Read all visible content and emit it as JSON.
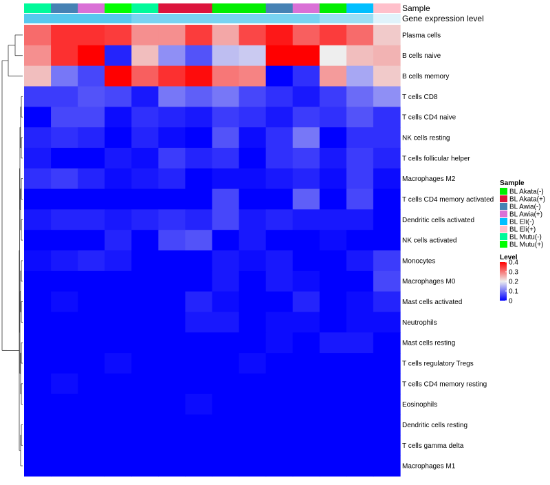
{
  "chart_data": {
    "type": "heatmap",
    "annotation_labels": [
      "Sample",
      "Gene expression level"
    ],
    "row_labels": [
      "Plasma cells",
      "B cells naive",
      "B cells memory",
      "T cells CD8",
      "T cells CD4 naive",
      "NK cells resting",
      "T cells follicular helper",
      "Macrophages M2",
      "T cells CD4 memory activated",
      "Dendritic cells activated",
      "NK cells activated",
      "Monocytes",
      "Macrophages M0",
      "Mast cells activated",
      "Neutrophils",
      "Mast cells resting",
      "T cells regulatory  Tregs",
      "T cells CD4 memory resting",
      "Eosinophils",
      "Dendritic cells resting",
      "T cells gamma delta",
      "Macrophages M1"
    ],
    "column_samples": [
      "BL Mutu(-)",
      "BL Awia(-)",
      "BL Awia(+)",
      "BL Mutu(+)",
      "BL Mutu(-)",
      "BL Akata(+)",
      "BL Akata(+)",
      "BL Akata(-)",
      "BL Akata(-)",
      "BL Awia(-)",
      "BL Awia(+)",
      "BL Akata(-)",
      "BL Eli(-)",
      "BL Eli(+)"
    ],
    "expression_band": [
      0.16,
      0.16,
      0.16,
      0.16,
      0.14,
      0.14,
      0.14,
      0.14,
      0.14,
      0.14,
      0.14,
      0.12,
      0.12,
      0.08
    ],
    "values": [
      [
        0.31,
        0.36,
        0.36,
        0.35,
        0.28,
        0.28,
        0.35,
        0.26,
        0.34,
        0.38,
        0.32,
        0.35,
        0.31,
        0.23
      ],
      [
        0.28,
        0.36,
        0.4,
        0.03,
        0.24,
        0.12,
        0.07,
        0.16,
        0.17,
        0.4,
        0.4,
        0.2,
        0.24,
        0.25
      ],
      [
        0.24,
        0.1,
        0.06,
        0.4,
        0.32,
        0.36,
        0.39,
        0.3,
        0.29,
        0.0,
        0.04,
        0.27,
        0.14,
        0.23
      ],
      [
        0.05,
        0.05,
        0.07,
        0.06,
        0.02,
        0.1,
        0.08,
        0.1,
        0.06,
        0.04,
        0.02,
        0.05,
        0.09,
        0.12
      ],
      [
        0.0,
        0.06,
        0.06,
        0.01,
        0.04,
        0.03,
        0.02,
        0.05,
        0.04,
        0.02,
        0.05,
        0.04,
        0.07,
        0.04
      ],
      [
        0.03,
        0.04,
        0.03,
        0.0,
        0.03,
        0.01,
        0.0,
        0.07,
        0.01,
        0.04,
        0.1,
        0.0,
        0.04,
        0.04
      ],
      [
        0.02,
        0.0,
        0.0,
        0.02,
        0.01,
        0.05,
        0.03,
        0.04,
        0.0,
        0.04,
        0.05,
        0.02,
        0.05,
        0.03
      ],
      [
        0.04,
        0.05,
        0.03,
        0.01,
        0.02,
        0.03,
        0.0,
        0.01,
        0.01,
        0.02,
        0.03,
        0.01,
        0.05,
        0.01
      ],
      [
        0.0,
        0.0,
        0.0,
        0.0,
        0.0,
        0.0,
        0.0,
        0.06,
        0.0,
        0.0,
        0.08,
        0.0,
        0.06,
        0.0
      ],
      [
        0.02,
        0.03,
        0.03,
        0.02,
        0.03,
        0.04,
        0.03,
        0.06,
        0.02,
        0.03,
        0.02,
        0.02,
        0.02,
        0.0
      ],
      [
        0.0,
        0.0,
        0.0,
        0.03,
        0.0,
        0.06,
        0.07,
        0.0,
        0.02,
        0.0,
        0.0,
        0.01,
        0.0,
        0.0
      ],
      [
        0.01,
        0.02,
        0.03,
        0.02,
        0.0,
        0.0,
        0.0,
        0.02,
        0.01,
        0.02,
        0.0,
        0.0,
        0.02,
        0.05
      ],
      [
        0.0,
        0.0,
        0.0,
        0.0,
        0.0,
        0.0,
        0.0,
        0.02,
        0.0,
        0.02,
        0.01,
        0.0,
        0.0,
        0.06
      ],
      [
        0.0,
        0.01,
        0.0,
        0.0,
        0.0,
        0.0,
        0.03,
        0.01,
        0.0,
        0.0,
        0.03,
        0.0,
        0.01,
        0.03
      ],
      [
        0.0,
        0.0,
        0.0,
        0.0,
        0.0,
        0.0,
        0.02,
        0.02,
        0.0,
        0.01,
        0.01,
        0.0,
        0.01,
        0.01
      ],
      [
        0.0,
        0.0,
        0.0,
        0.0,
        0.0,
        0.0,
        0.0,
        0.0,
        0.0,
        0.01,
        0.0,
        0.02,
        0.02,
        0.0
      ],
      [
        0.0,
        0.0,
        0.0,
        0.01,
        0.0,
        0.0,
        0.0,
        0.0,
        0.01,
        0.0,
        0.0,
        0.0,
        0.0,
        0.0
      ],
      [
        0.0,
        0.01,
        0.0,
        0.0,
        0.0,
        0.0,
        0.0,
        0.0,
        0.0,
        0.0,
        0.0,
        0.0,
        0.0,
        0.0
      ],
      [
        0.0,
        0.0,
        0.0,
        0.0,
        0.0,
        0.0,
        0.01,
        0.0,
        0.0,
        0.0,
        0.0,
        0.0,
        0.0,
        0.0
      ],
      [
        0.0,
        0.0,
        0.0,
        0.0,
        0.0,
        0.0,
        0.0,
        0.0,
        0.0,
        0.0,
        0.0,
        0.0,
        0.0,
        0.0
      ],
      [
        0.0,
        0.0,
        0.0,
        0.0,
        0.0,
        0.0,
        0.0,
        0.0,
        0.0,
        0.0,
        0.0,
        0.0,
        0.0,
        0.0
      ],
      [
        0.0,
        0.0,
        0.0,
        0.0,
        0.0,
        0.0,
        0.0,
        0.0,
        0.0,
        0.0,
        0.0,
        0.0,
        0.0,
        0.0
      ]
    ],
    "color_range": [
      0,
      0.4
    ],
    "colors": {
      "low": "#0000ff",
      "mid": "#eeeeee",
      "high": "#ff0000"
    },
    "legend_sample": {
      "title": "Sample",
      "items": [
        {
          "label": "BL Akata(-)",
          "color": "#00ee00"
        },
        {
          "label": "BL Akata(+)",
          "color": "#dc143c"
        },
        {
          "label": "BL Awia(-)",
          "color": "#4682b4"
        },
        {
          "label": "BL Awia(+)",
          "color": "#da70d6"
        },
        {
          "label": "BL Eli(-)",
          "color": "#00bfff"
        },
        {
          "label": "BL Eli(+)",
          "color": "#ffc0cb"
        },
        {
          "label": "BL Mutu(-)",
          "color": "#00fa9a"
        },
        {
          "label": "BL Mutu(+)",
          "color": "#00ff00"
        }
      ]
    },
    "legend_level": {
      "title": "Level",
      "ticks": [
        "0.4",
        "0.3",
        "0.2",
        "0.1",
        "0"
      ],
      "tick_values": [
        0.4,
        0.3,
        0.2,
        0.1,
        0
      ]
    },
    "expression_colors": {
      "low": "#e0f3fb",
      "high": "#56c8ee"
    }
  }
}
